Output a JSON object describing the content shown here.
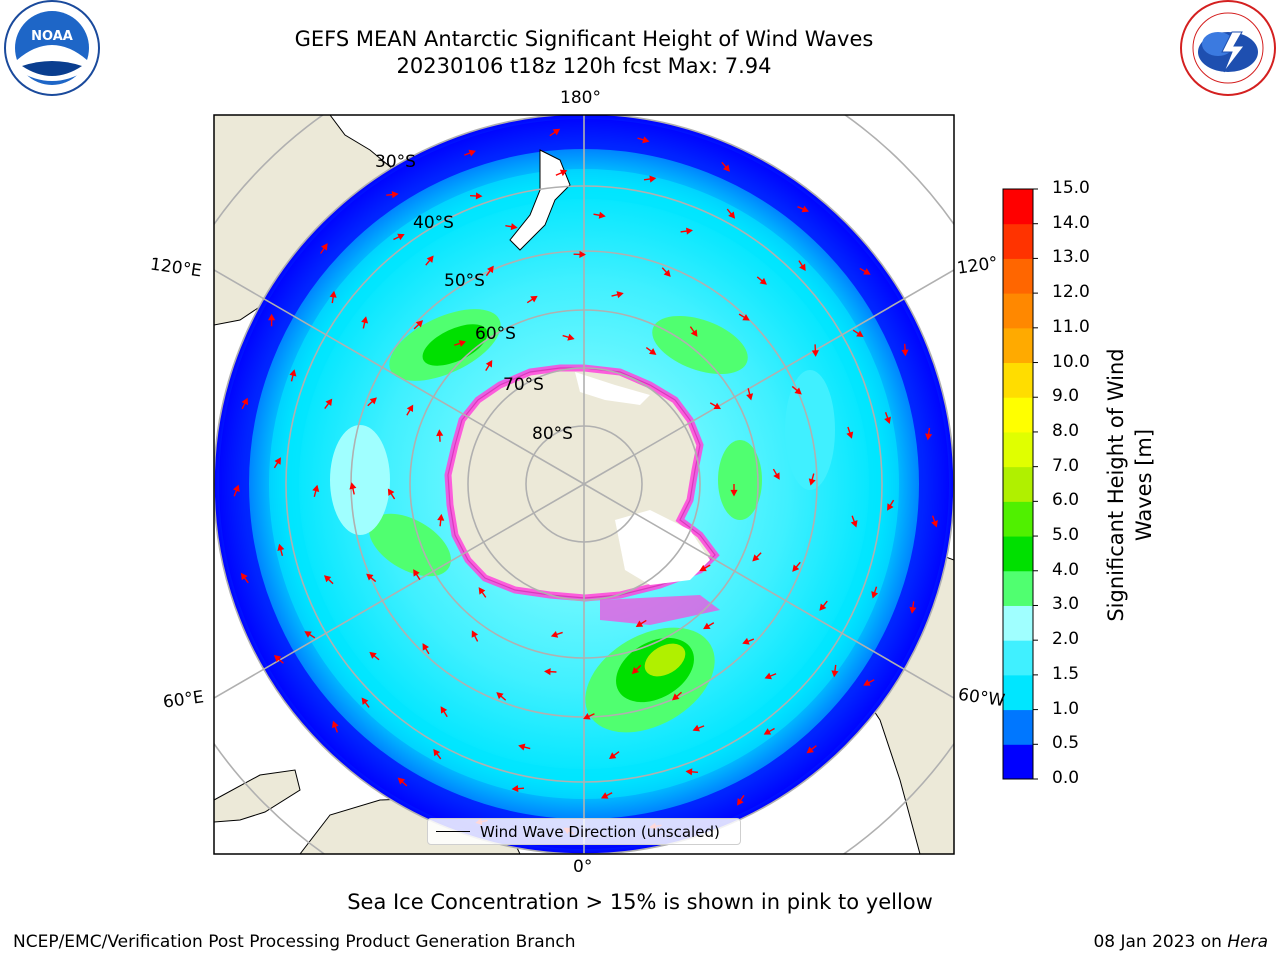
{
  "header": {
    "title_line1": "GEFS MEAN Antarctic Significant Height of Wind Waves",
    "title_line2": "20230106 t18z 120h fcst   Max: 7.94"
  },
  "logos": {
    "left": "noara-logo",
    "right": "national-weather-service-logo"
  },
  "map": {
    "longitude_labels": {
      "top": "180°",
      "upper_left": "120°E",
      "upper_right": "120°",
      "lower_left": "60°E",
      "lower_right": "60°W",
      "bottom": "0°"
    },
    "latitude_labels": [
      "30°S",
      "40°S",
      "50°S",
      "60°S",
      "70°S",
      "80°S"
    ],
    "legend_label": "Wind Wave Direction (unscaled)",
    "colors": {
      "land": "#ece9d8",
      "sea_ice": "#ffffff",
      "ice_edge": "#ff44dd",
      "arrow": "#ff0000",
      "grid": "#b0b0b0"
    }
  },
  "colorbar": {
    "label": "Significant Height of Wind Waves [m]",
    "ticks": [
      "15.0",
      "14.0",
      "13.0",
      "12.0",
      "11.0",
      "10.0",
      "9.0",
      "8.0",
      "7.0",
      "6.0",
      "5.0",
      "4.0",
      "3.0",
      "2.0",
      "1.5",
      "1.0",
      "0.5",
      "0.0"
    ],
    "colors": [
      "#0000ff",
      "#0077ff",
      "#00e6ff",
      "#40f0ff",
      "#a0ffff",
      "#50ff70",
      "#00e000",
      "#50f000",
      "#b0f000",
      "#e0ff00",
      "#ffff00",
      "#ffdd00",
      "#ffaa00",
      "#ff8800",
      "#ff6600",
      "#ff3300",
      "#ff0000"
    ]
  },
  "caption": "Sea Ice Concentration > 15% is shown in pink to yellow",
  "footer": {
    "left": "NCEP/EMC/Verification Post Processing Product Generation Branch",
    "right_date": "08 Jan 2023 on",
    "right_host": "Hera"
  }
}
